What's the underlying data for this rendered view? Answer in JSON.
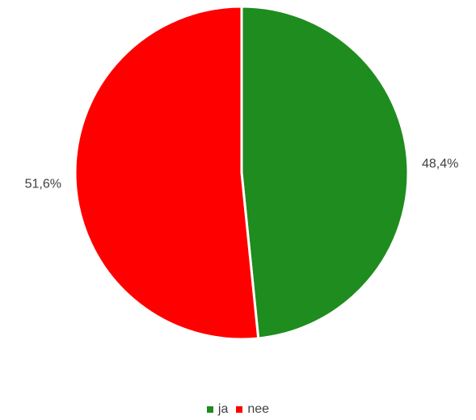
{
  "chart_data": {
    "type": "pie",
    "categories": [
      "ja",
      "nee"
    ],
    "values": [
      48.4,
      51.6
    ],
    "labels": [
      "48,4%",
      "51,6%"
    ],
    "colors": [
      "#1e8c1e",
      "#ff0000"
    ],
    "legend_position": "bottom",
    "start_angle_deg": 0,
    "direction": "clockwise"
  }
}
